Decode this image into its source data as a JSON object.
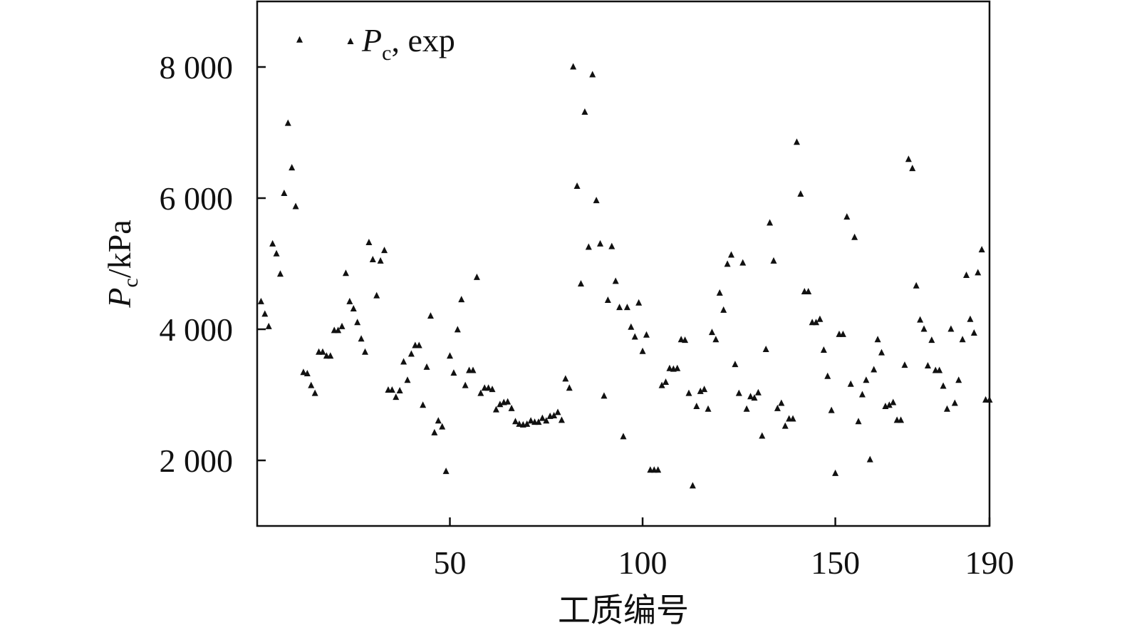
{
  "chart_data": {
    "type": "scatter",
    "xlabel": "工质编号",
    "ylabel": {
      "symbol": "P",
      "subscript": "c",
      "unit": "/kPa"
    },
    "legend": {
      "symbol": "P",
      "subscript": "c",
      "suffix": ", exp",
      "marker": "triangle",
      "placement": "top-left"
    },
    "xlim": [
      0,
      190
    ],
    "ylim": [
      1000,
      9000
    ],
    "x_ticks": [
      50,
      100,
      150,
      190
    ],
    "x_tick_labels": [
      "50",
      "100",
      "150",
      "190"
    ],
    "y_ticks": [
      2000,
      4000,
      6000,
      8000
    ],
    "y_tick_labels": [
      "2 000",
      "4 000",
      "6 000",
      "8 000"
    ],
    "grid": false,
    "marker_color": "#111111",
    "series": [
      {
        "x": [
          1,
          2,
          3,
          4,
          5,
          6,
          7,
          8,
          9,
          10,
          11,
          12,
          13,
          14,
          15,
          16,
          17,
          18,
          19,
          20,
          21,
          22,
          23,
          24,
          25,
          26,
          27,
          28,
          29,
          30,
          31,
          32,
          33,
          34,
          35,
          36,
          37,
          38,
          39,
          40,
          41,
          42,
          43,
          44,
          45,
          46,
          47,
          48,
          49,
          50,
          51,
          52,
          53,
          54,
          55,
          56,
          57,
          58,
          59,
          60,
          61,
          62,
          63,
          64,
          65,
          66,
          67,
          68,
          69,
          70,
          71,
          72,
          73,
          74,
          75,
          76,
          77,
          78,
          79,
          80,
          81,
          82,
          83,
          84,
          85,
          86,
          87,
          88,
          89,
          90,
          91,
          92,
          93,
          94,
          95,
          96,
          97,
          98,
          99,
          100,
          101,
          102,
          103,
          104,
          105,
          106,
          107,
          108,
          109,
          110,
          111,
          112,
          113,
          114,
          115,
          116,
          117,
          118,
          119,
          120,
          121,
          122,
          123,
          124,
          125,
          126,
          127,
          128,
          129,
          130,
          131,
          132,
          133,
          134,
          135,
          136,
          137,
          138,
          139,
          140,
          141,
          142,
          143,
          144,
          145,
          146,
          147,
          148,
          149,
          150,
          151,
          152,
          153,
          154,
          155,
          156,
          157,
          158,
          159,
          160,
          161,
          162,
          163,
          164,
          165,
          166,
          167,
          168,
          169,
          170,
          171,
          172,
          173,
          174,
          175,
          176,
          177,
          178,
          179,
          180,
          181,
          182,
          183,
          184,
          185,
          186,
          187,
          188,
          189,
          190
        ],
        "y": [
          4420,
          4230,
          4040,
          5300,
          5150,
          4840,
          6070,
          7140,
          6460,
          5870,
          8410,
          3340,
          3320,
          3140,
          3020,
          3650,
          3650,
          3590,
          3590,
          3980,
          3980,
          4040,
          4850,
          4420,
          4310,
          4100,
          3850,
          3650,
          5320,
          5060,
          4510,
          5040,
          5200,
          3070,
          3070,
          2960,
          3060,
          3500,
          3220,
          3620,
          3750,
          3750,
          2840,
          3420,
          4200,
          2420,
          2600,
          2510,
          1830,
          3590,
          3330,
          3990,
          4450,
          3140,
          3370,
          3370,
          4790,
          3020,
          3100,
          3100,
          3080,
          2770,
          2850,
          2880,
          2890,
          2790,
          2590,
          2550,
          2540,
          2550,
          2600,
          2580,
          2580,
          2640,
          2600,
          2670,
          2680,
          2730,
          2610,
          3240,
          3100,
          8000,
          6180,
          4690,
          7310,
          5250,
          7880,
          5960,
          5300,
          2980,
          4440,
          5260,
          4730,
          4330,
          2360,
          4330,
          4030,
          3880,
          4400,
          3660,
          3910,
          1850,
          1850,
          1850,
          3140,
          3190,
          3400,
          3390,
          3400,
          3840,
          3830,
          3020,
          1610,
          2820,
          3050,
          3080,
          2780,
          3950,
          3840,
          4550,
          4290,
          4990,
          5130,
          3460,
          3020,
          5010,
          2780,
          2970,
          2950,
          3030,
          2370,
          3690,
          5620,
          5040,
          2790,
          2870,
          2520,
          2630,
          2630,
          6850,
          6060,
          4570,
          4570,
          4100,
          4100,
          4150,
          3680,
          3280,
          2760,
          1800,
          3920,
          3920,
          5710,
          3160,
          5400,
          2590,
          3000,
          3220,
          2010,
          3380,
          3840,
          3640,
          2820,
          2840,
          2880,
          2610,
          2610,
          3450,
          6590,
          6450,
          4660,
          4140,
          4000,
          3440,
          3830,
          3370,
          3370,
          3130,
          2780,
          4000,
          2870,
          3220,
          3840,
          4820,
          4150,
          3940,
          4860,
          5210,
          2920,
          2920
        ]
      }
    ]
  }
}
